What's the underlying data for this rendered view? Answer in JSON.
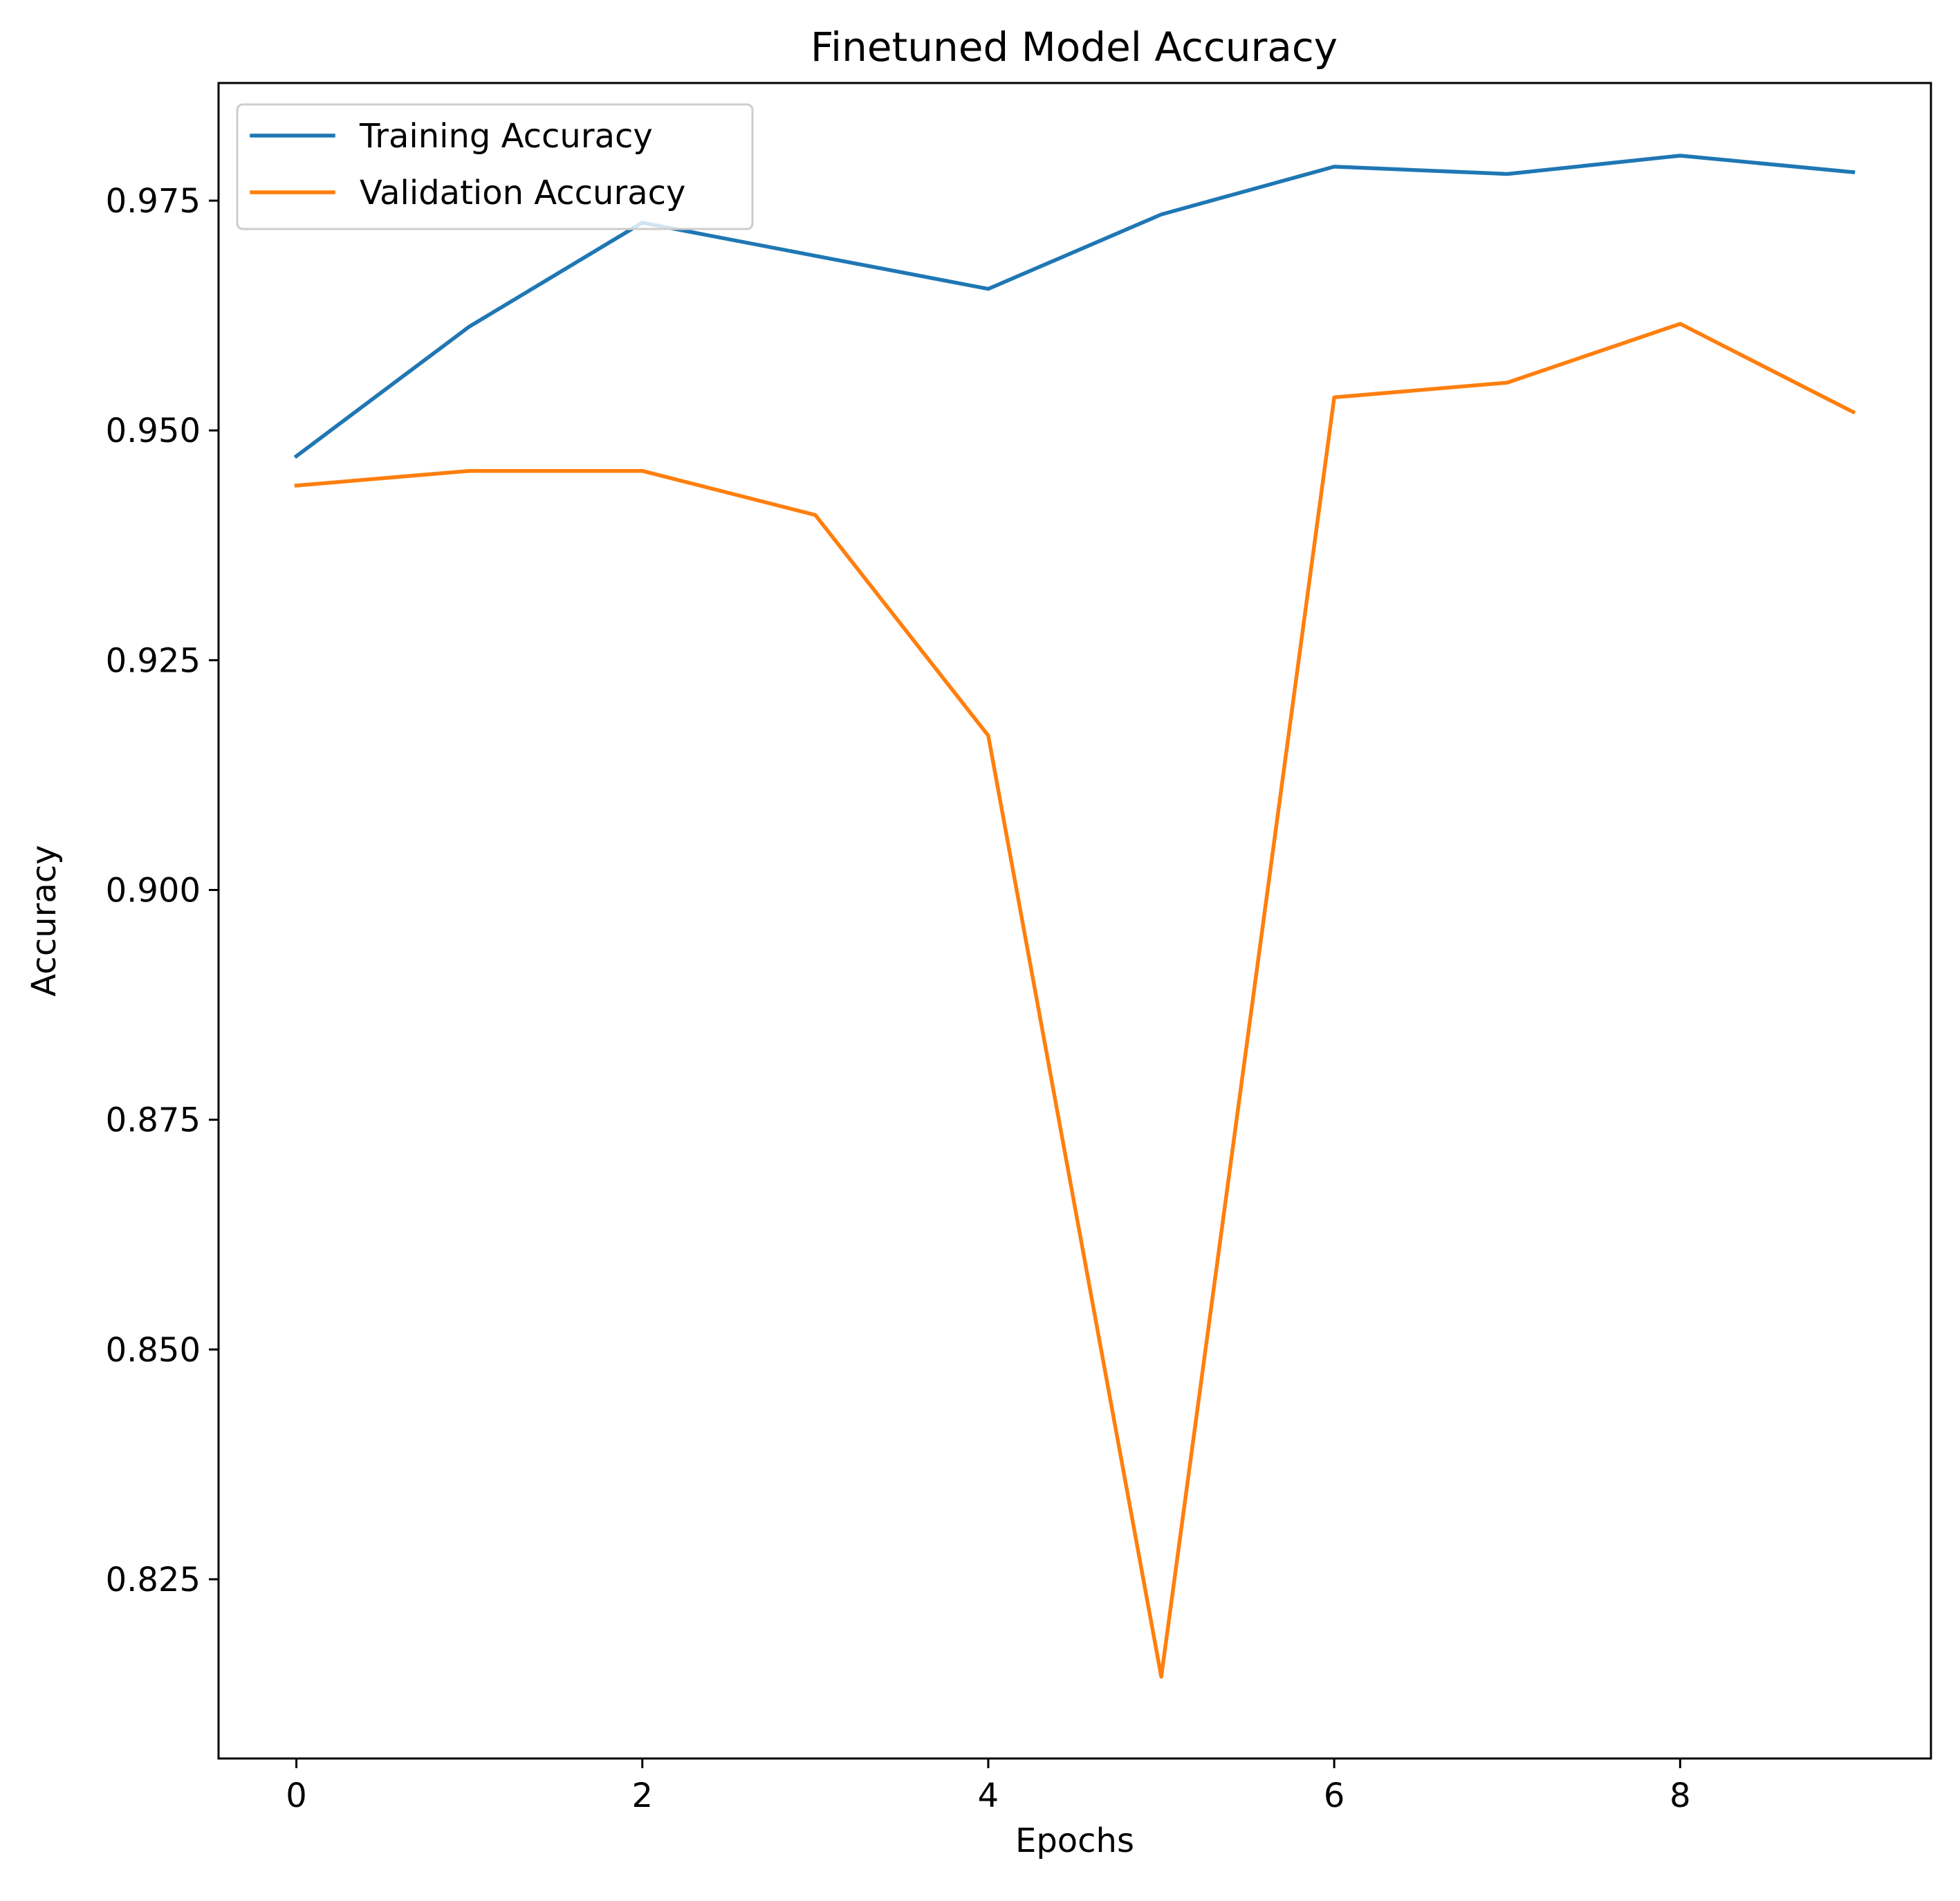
{
  "chart_data": {
    "type": "line",
    "title": "Finetuned Model Accuracy",
    "xlabel": "Epochs",
    "ylabel": "Accuracy",
    "x": [
      0,
      1,
      2,
      3,
      4,
      5,
      6,
      7,
      8,
      9
    ],
    "xlim": [
      -0.45,
      9.45
    ],
    "ylim": [
      0.8055,
      0.9878
    ],
    "xticks": [
      0,
      2,
      4,
      6,
      8
    ],
    "xtick_labels": [
      "0",
      "2",
      "4",
      "6",
      "8"
    ],
    "yticks": [
      0.825,
      0.85,
      0.875,
      0.9,
      0.925,
      0.95,
      0.975
    ],
    "ytick_labels": [
      "0.825",
      "0.850",
      "0.875",
      "0.900",
      "0.925",
      "0.950",
      "0.975"
    ],
    "grid": false,
    "legend_position": "top-left",
    "series": [
      {
        "name": "Training Accuracy",
        "color": "#1f77b4",
        "values": [
          0.9472,
          0.9613,
          0.9726,
          0.969,
          0.9654,
          0.9735,
          0.9787,
          0.9779,
          0.9799,
          0.9781
        ]
      },
      {
        "name": "Validation Accuracy",
        "color": "#ff7f0e",
        "values": [
          0.944,
          0.9456,
          0.9456,
          0.9408,
          0.9168,
          0.8144,
          0.9536,
          0.9552,
          0.9616,
          0.952
        ]
      }
    ]
  }
}
